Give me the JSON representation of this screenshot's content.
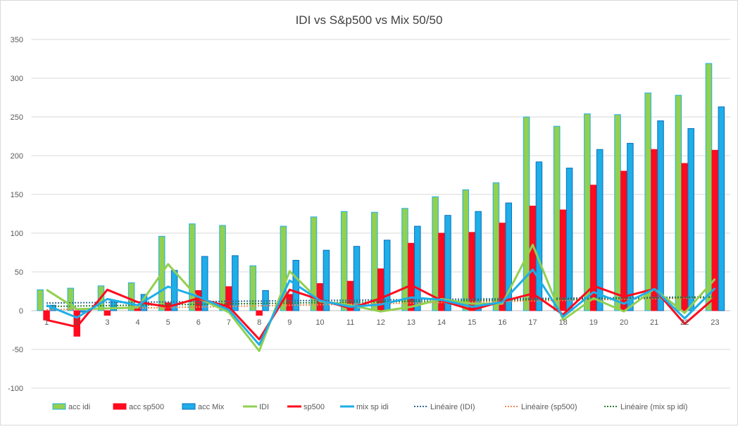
{
  "chart_data": {
    "type": "bar+line",
    "title": "IDI vs S&p500 vs Mix 50/50",
    "xlabel": "",
    "ylabel": "",
    "ylim": [
      -100,
      350
    ],
    "yticks": [
      -100,
      -50,
      0,
      50,
      100,
      150,
      200,
      250,
      300,
      350
    ],
    "grid": true,
    "legend_position": "bottom",
    "categories": [
      "1",
      "2",
      "3",
      "4",
      "5",
      "6",
      "7",
      "8",
      "9",
      "10",
      "11",
      "12",
      "13",
      "14",
      "15",
      "16",
      "17",
      "18",
      "19",
      "20",
      "21",
      "22",
      "23"
    ],
    "bar_series": [
      {
        "name": "acc idi",
        "color": "#92D050",
        "border": "#1FB0E8",
        "values": [
          27,
          29,
          32,
          36,
          96,
          112,
          110,
          58,
          109,
          121,
          128,
          127,
          132,
          147,
          156,
          165,
          250,
          238,
          254,
          253,
          281,
          278,
          319
        ]
      },
      {
        "name": "acc sp500",
        "color": "#FF0A1E",
        "border": "#FF0A1E",
        "values": [
          -12,
          -33,
          -6,
          5,
          10,
          26,
          31,
          -6,
          21,
          35,
          38,
          54,
          87,
          100,
          101,
          113,
          135,
          130,
          162,
          180,
          208,
          190,
          207
        ]
      },
      {
        "name": "acc Mix",
        "color": "#1EAEE8",
        "border": "#0B6FBF",
        "values": [
          7,
          -2,
          13,
          21,
          52,
          70,
          71,
          26,
          65,
          78,
          83,
          91,
          109,
          123,
          128,
          139,
          192,
          184,
          208,
          216,
          245,
          235,
          263
        ]
      }
    ],
    "line_series": [
      {
        "name": "IDI",
        "color": "#92D050",
        "values": [
          27,
          2,
          3,
          4,
          60,
          16,
          -2,
          -52,
          51,
          12,
          7,
          -1,
          5,
          15,
          9,
          9,
          85,
          -12,
          16,
          -1,
          28,
          -3,
          41
        ]
      },
      {
        "name": "sp500",
        "color": "#FF0A1E",
        "values": [
          -12,
          -21,
          27,
          11,
          5,
          16,
          5,
          -37,
          27,
          14,
          3,
          16,
          33,
          13,
          1,
          12,
          22,
          -5,
          32,
          18,
          28,
          -17,
          17
        ]
      },
      {
        "name": "mix sp idi",
        "color": "#1EAEE8",
        "values": [
          7,
          -9,
          15,
          7,
          31,
          18,
          1,
          -44,
          39,
          13,
          5,
          8,
          17,
          14,
          5,
          11,
          53,
          -8,
          24,
          9,
          28,
          -10,
          29
        ]
      }
    ],
    "trendlines": [
      {
        "name": "Linéaire (IDI)",
        "of": "IDI",
        "color": "#2E6E96"
      },
      {
        "name": "Linéaire (sp500)",
        "of": "sp500",
        "color": "#F08A50"
      },
      {
        "name": "Linéaire (mix sp idi)",
        "of": "mix sp idi",
        "color": "#2E7D32"
      }
    ]
  }
}
